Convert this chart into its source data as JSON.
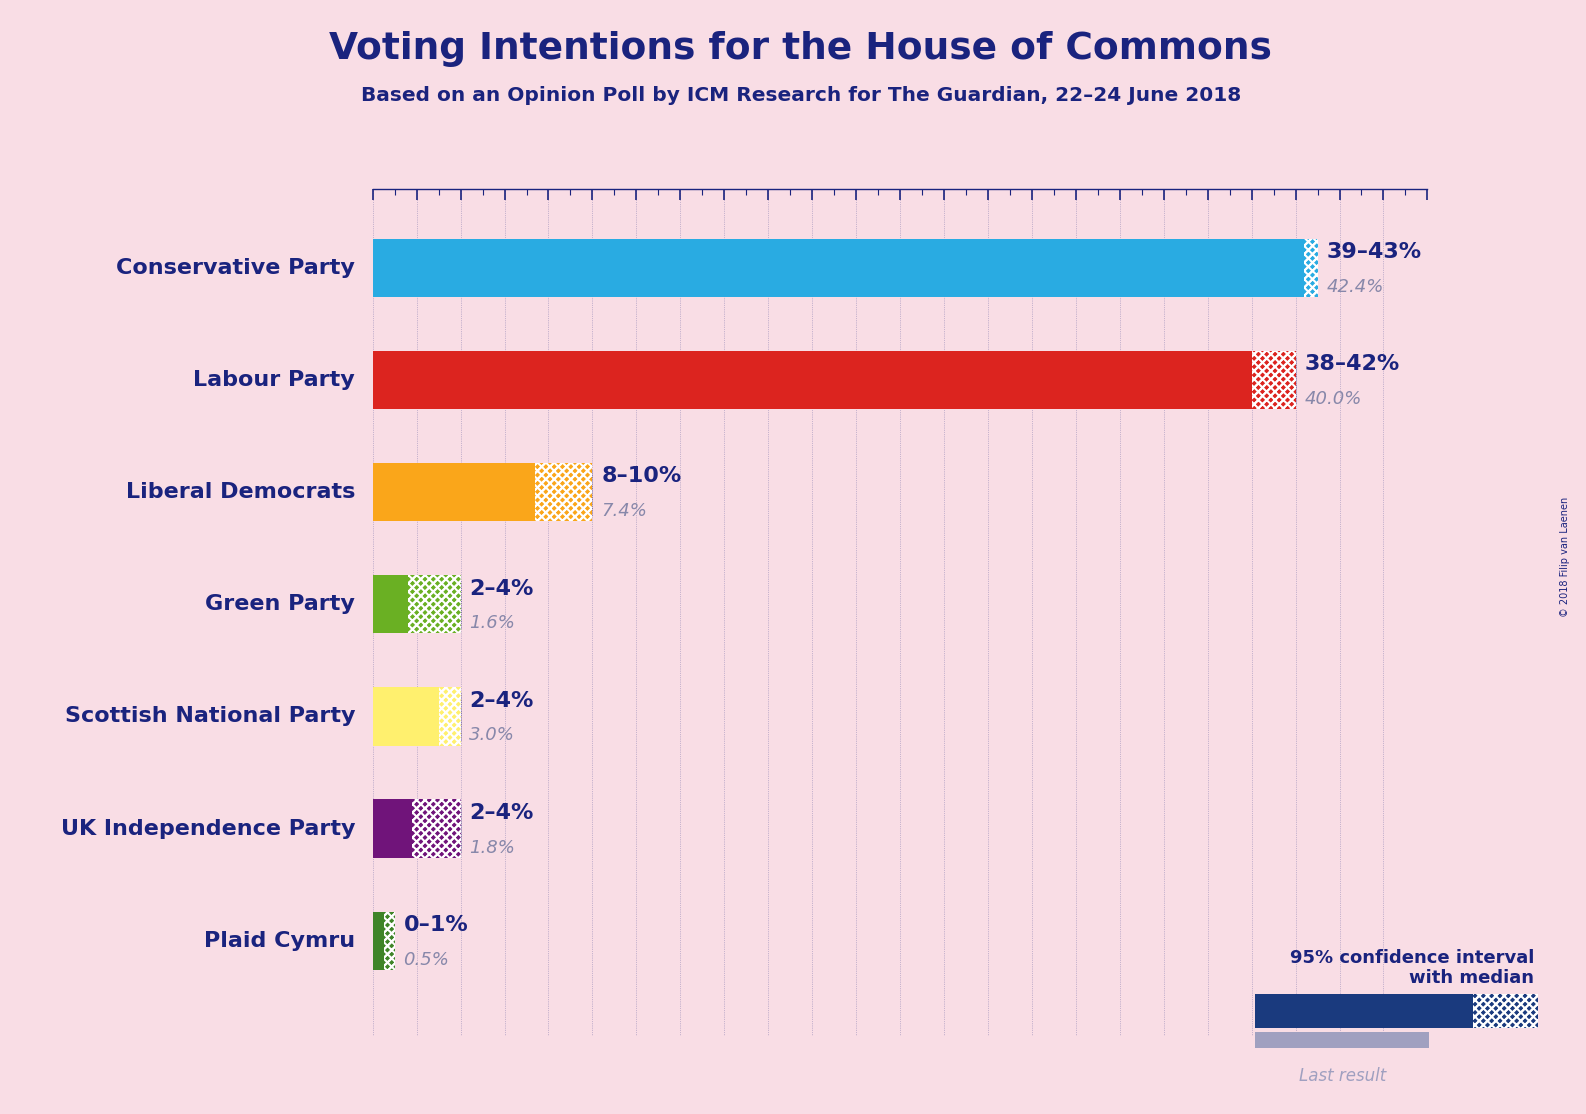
{
  "title": "Voting Intentions for the House of Commons",
  "subtitle": "Based on an Opinion Poll by ICM Research for The Guardian, 22–24 June 2018",
  "copyright": "© 2018 Filip van Laenen",
  "background_color": "#f9dde5",
  "title_color": "#1a237e",
  "parties": [
    {
      "name": "Conservative Party",
      "median": 42.4,
      "ci_low": 39,
      "ci_high": 43,
      "last_result": 42.4,
      "color": "#29ABE2",
      "range_label": "39–43%",
      "median_label": "42.4%"
    },
    {
      "name": "Labour Party",
      "median": 40.0,
      "ci_low": 38,
      "ci_high": 42,
      "last_result": 40.0,
      "color": "#DC241F",
      "range_label": "38–42%",
      "median_label": "40.0%"
    },
    {
      "name": "Liberal Democrats",
      "median": 7.4,
      "ci_low": 8,
      "ci_high": 10,
      "last_result": 7.4,
      "color": "#FAA61A",
      "range_label": "8–10%",
      "median_label": "7.4%"
    },
    {
      "name": "Green Party",
      "median": 1.6,
      "ci_low": 2,
      "ci_high": 4,
      "last_result": 1.6,
      "color": "#6AB023",
      "range_label": "2–4%",
      "median_label": "1.6%"
    },
    {
      "name": "Scottish National Party",
      "median": 3.0,
      "ci_low": 2,
      "ci_high": 4,
      "last_result": 3.0,
      "color": "#FFF06E",
      "range_label": "2–4%",
      "median_label": "3.0%"
    },
    {
      "name": "UK Independence Party",
      "median": 1.8,
      "ci_low": 2,
      "ci_high": 4,
      "last_result": 1.8,
      "color": "#70147A",
      "range_label": "2–4%",
      "median_label": "1.8%"
    },
    {
      "name": "Plaid Cymru",
      "median": 0.5,
      "ci_low": 0,
      "ci_high": 1,
      "last_result": 0.5,
      "color": "#3F8428",
      "range_label": "0–1%",
      "median_label": "0.5%"
    }
  ],
  "xlim": [
    0,
    48
  ],
  "tick_interval": 2,
  "legend_text_ci": "95% confidence interval\nwith median",
  "legend_text_last": "Last result",
  "legend_color_ci": "#1a3a7e",
  "legend_color_last": "#a0a0c0"
}
